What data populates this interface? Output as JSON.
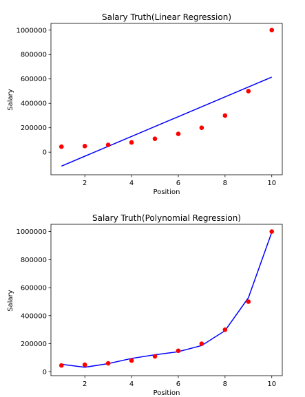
{
  "chart_data": [
    {
      "type": "scatter",
      "title": "Salary Truth(Linear Regression)",
      "xlabel": "Position",
      "ylabel": "Salary",
      "xlim": [
        0.55,
        10.45
      ],
      "ylim": [
        -185000,
        1055000
      ],
      "x_ticks": [
        2,
        4,
        6,
        8,
        10
      ],
      "y_ticks": [
        0,
        200000,
        400000,
        600000,
        800000,
        1000000
      ],
      "y_tick_labels": [
        "0",
        "200000",
        "400000",
        "600000",
        "800000",
        "1000000"
      ],
      "grid": false,
      "series": [
        {
          "kind": "scatter",
          "color": "#ff0000",
          "x": [
            1,
            2,
            3,
            4,
            5,
            6,
            7,
            8,
            9,
            10
          ],
          "y": [
            45000,
            50000,
            60000,
            80000,
            110000,
            150000,
            200000,
            300000,
            500000,
            1000000
          ]
        },
        {
          "kind": "line",
          "color": "#0000ff",
          "x": [
            1,
            10
          ],
          "y": [
            -114000,
            615000
          ]
        }
      ]
    },
    {
      "type": "scatter",
      "title": "Salary Truth(Polynomial Regression)",
      "xlabel": "Position",
      "ylabel": "Salary",
      "xlim": [
        0.55,
        10.45
      ],
      "ylim": [
        -28000,
        1052000
      ],
      "x_ticks": [
        2,
        4,
        6,
        8,
        10
      ],
      "y_ticks": [
        0,
        200000,
        400000,
        600000,
        800000,
        1000000
      ],
      "y_tick_labels": [
        "0",
        "200000",
        "400000",
        "600000",
        "800000",
        "1000000"
      ],
      "grid": false,
      "series": [
        {
          "kind": "scatter",
          "color": "#ff0000",
          "x": [
            1,
            2,
            3,
            4,
            5,
            6,
            7,
            8,
            9,
            10
          ],
          "y": [
            45000,
            50000,
            60000,
            80000,
            110000,
            150000,
            200000,
            300000,
            500000,
            1000000
          ]
        },
        {
          "kind": "line",
          "color": "#0000ff",
          "x": [
            1,
            2,
            3,
            4,
            5,
            6,
            7,
            8,
            9,
            10
          ],
          "y": [
            53000,
            32000,
            58000,
            95000,
            121000,
            143000,
            187000,
            293000,
            528000,
            995000
          ]
        }
      ]
    }
  ]
}
